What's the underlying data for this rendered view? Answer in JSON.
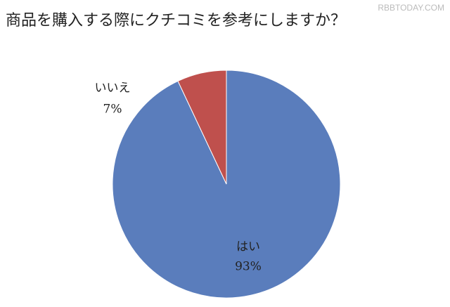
{
  "chart_data": {
    "type": "pie",
    "title": "商品を購入する際にクチコミを参考にしますか？",
    "categories": [
      "はい",
      "いいえ"
    ],
    "values": [
      93,
      7
    ],
    "value_labels": [
      "93%",
      "7%"
    ],
    "colors": [
      "#5a7dbc",
      "#bf504d"
    ]
  },
  "watermark": "RBBTODAY.COM"
}
